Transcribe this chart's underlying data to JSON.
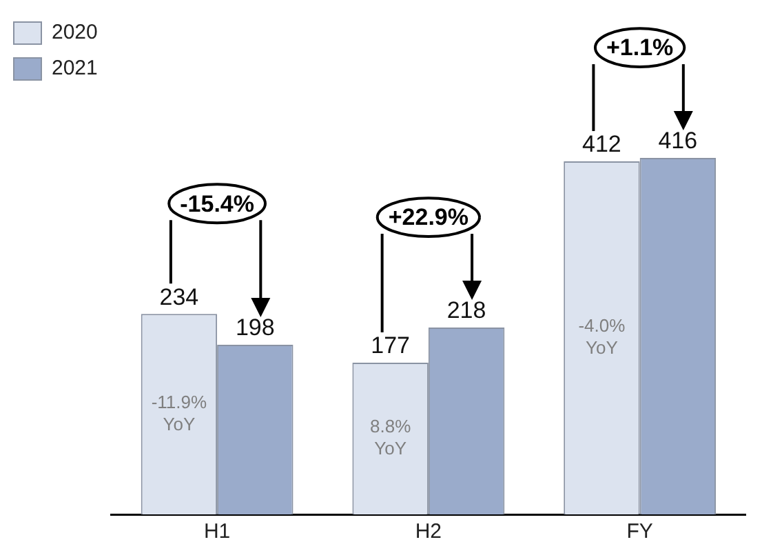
{
  "chart_data": {
    "type": "bar",
    "categories": [
      "H1",
      "H2",
      "FY"
    ],
    "series": [
      {
        "name": "2020",
        "color": "#dce3ef",
        "values": [
          234,
          177,
          412
        ]
      },
      {
        "name": "2021",
        "color": "#9aabcb",
        "values": [
          198,
          218,
          416
        ]
      }
    ],
    "data_labels": true,
    "legend": "top left",
    "tick_labels": "x",
    "annotations": [
      "-15.4%",
      "+22.9%",
      "+1.1%",
      "-11.9%\nYoY",
      "8.8%\nYoY",
      "-4.0%\nYoY"
    ]
  }
}
